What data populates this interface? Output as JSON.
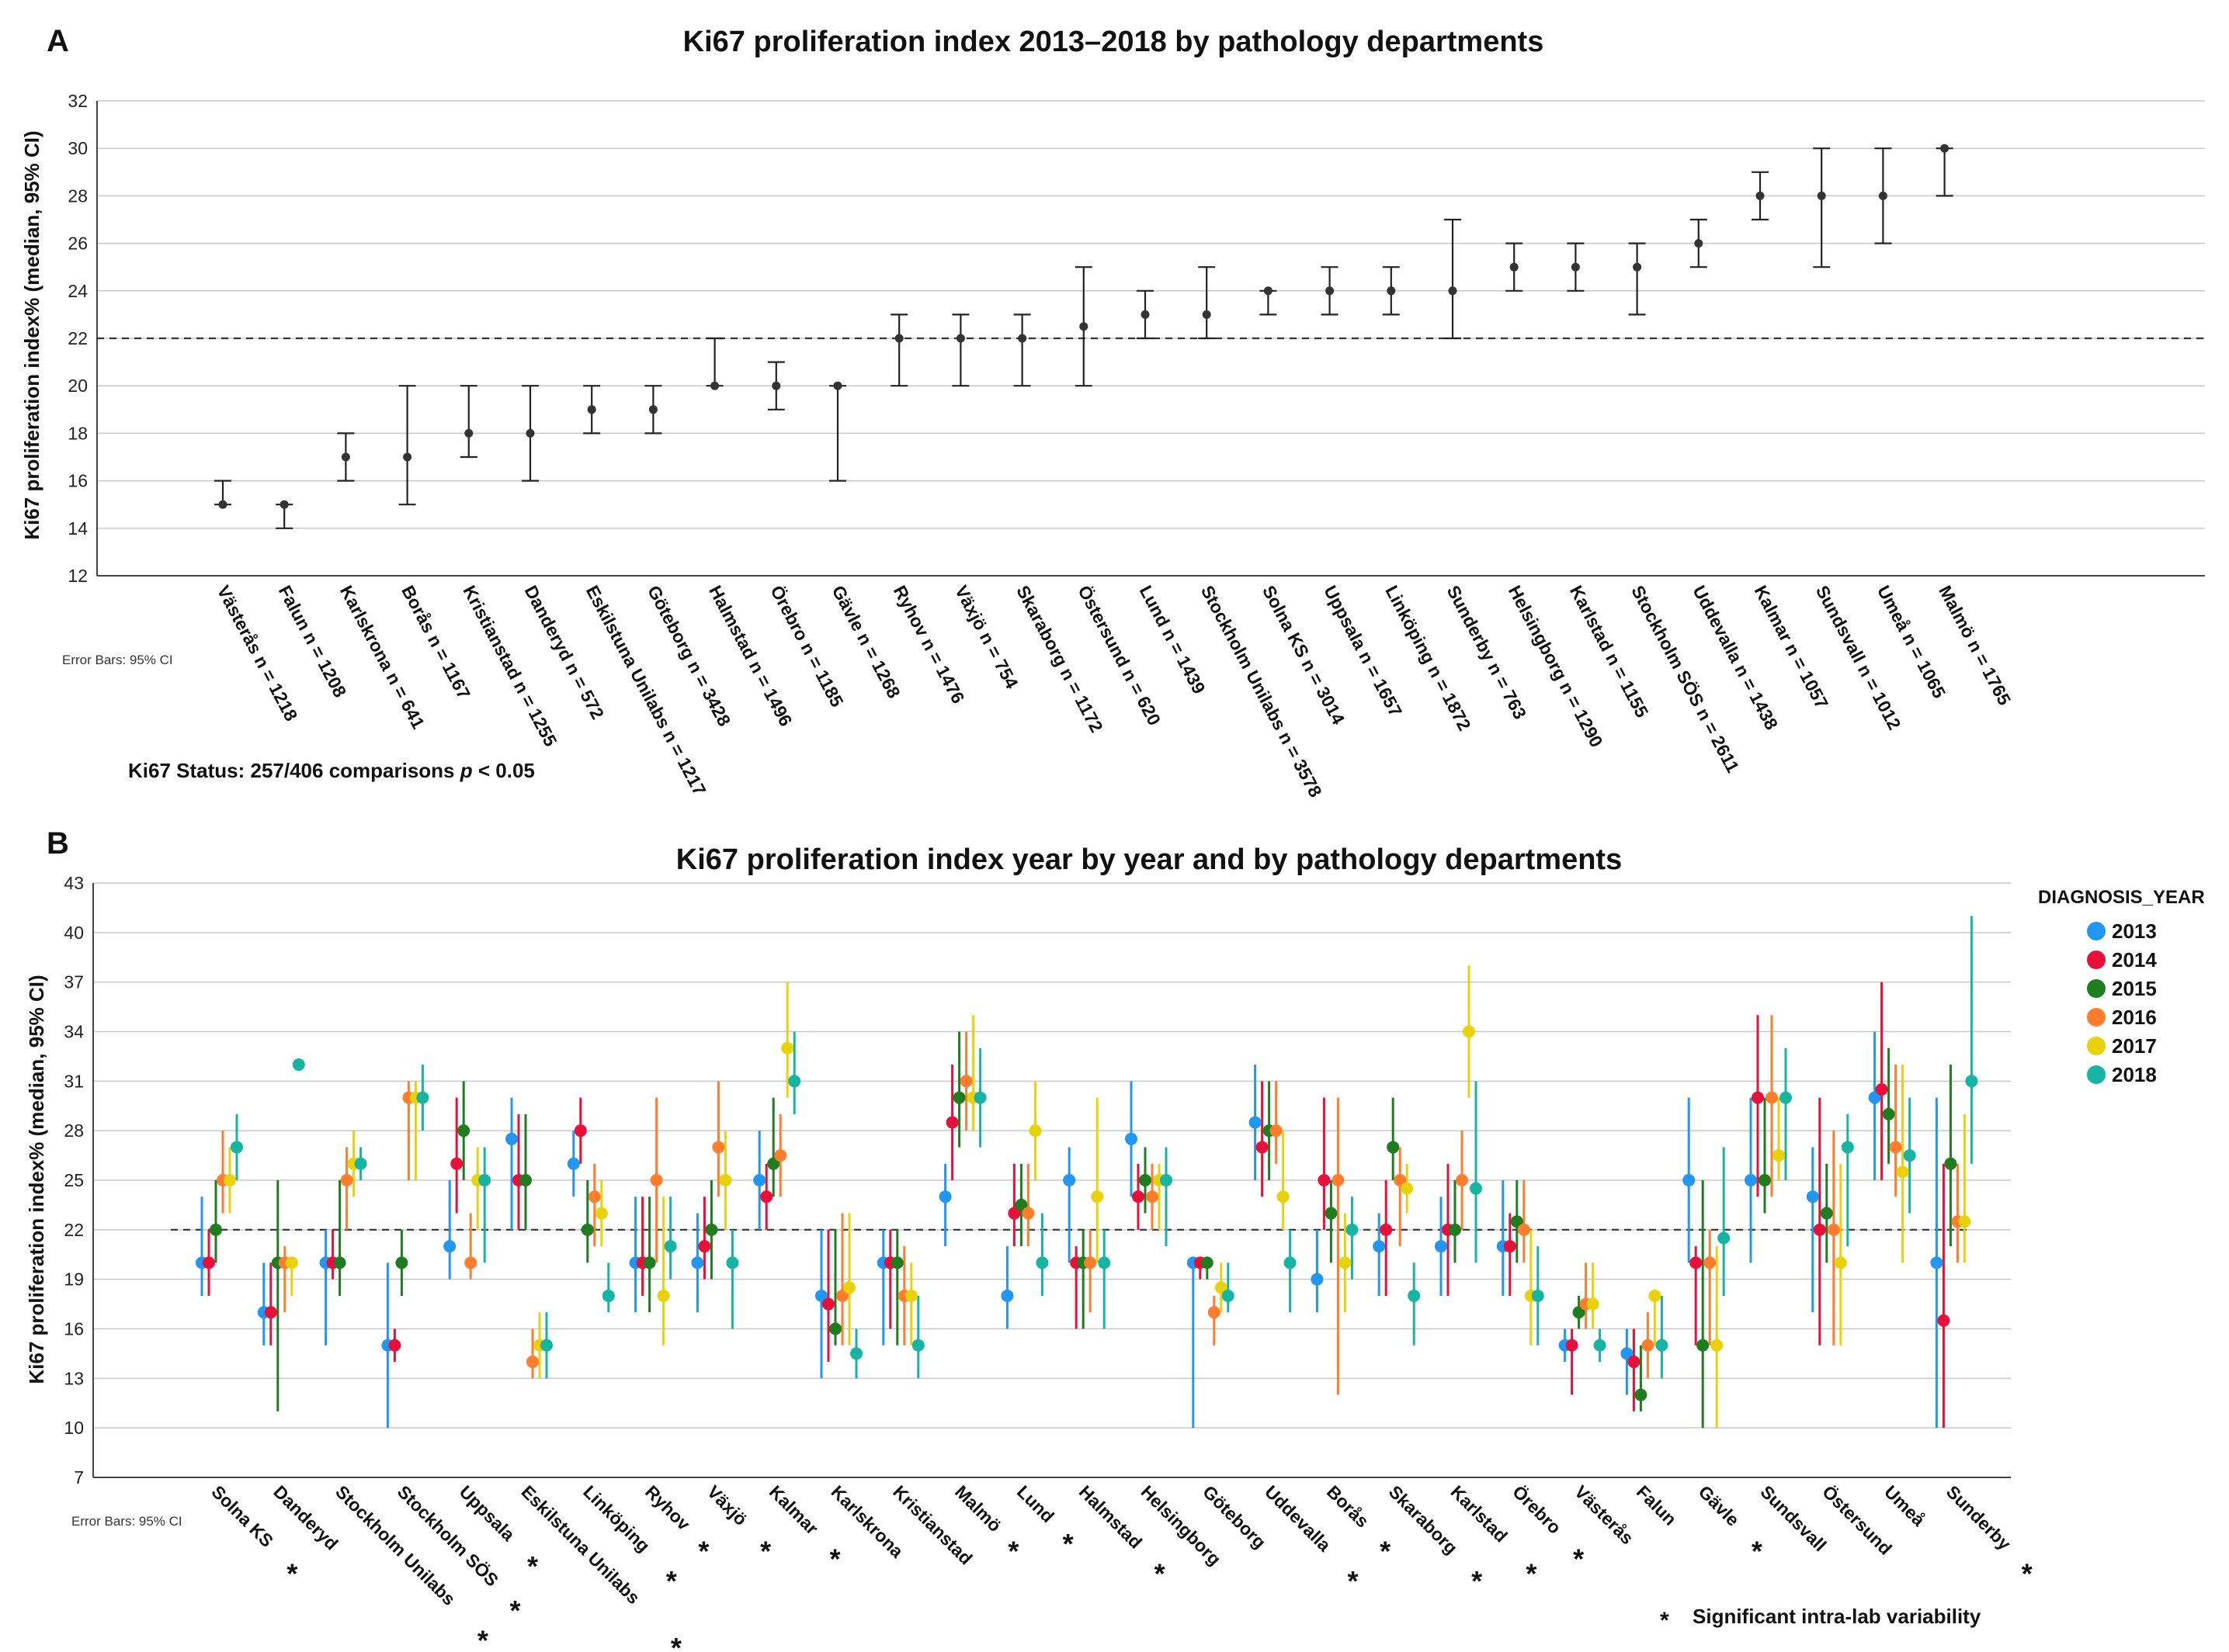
{
  "figure_a": {
    "panel_label": "A",
    "title": "Ki67 proliferation index 2013–2018 by pathology departments",
    "error_bars_note": "Error Bars: 95% CI",
    "status_prefix": "Ki67 Status: 257/406 comparisons ",
    "status_p": "p",
    "status_suffix": " < 0.05"
  },
  "figure_b": {
    "panel_label": "B",
    "title": "Ki67 proliferation index year by year and by pathology departments",
    "error_bars_note": "Error Bars: 95% CI",
    "footnote": "Significant intra-lab variability",
    "footnote_marker": "*"
  },
  "chart_data": [
    {
      "type": "errorbar",
      "title": "Ki67 proliferation index 2013–2018 by pathology departments",
      "xlabel": "",
      "ylabel": "Ki67 proliferation index% (median, 95% CI)",
      "ylim": [
        12,
        32
      ],
      "yticks": [
        12,
        14,
        16,
        18,
        20,
        22,
        24,
        26,
        28,
        30,
        32
      ],
      "grid": true,
      "reference_line": 22,
      "categories": [
        "Västerås n = 1218",
        "Falun n = 1208",
        "Karlskrona n = 641",
        "Borås n = 1167",
        "Kristianstad n = 1255",
        "Danderyd n = 572",
        "Eskilstuna Unilabs  n = 1217",
        "Göteborg n = 3428",
        "Halmstad n = 1496",
        "Örebro n = 1185",
        "Gävle n = 1268",
        "Ryhov n = 1476",
        "Växjö n = 754",
        "Skaraborg n = 1172",
        "Östersund n = 620",
        "Lund n = 1439",
        "Stockholm Unilabs  n = 3578",
        "Solna KS n = 3014",
        "Uppsala n = 1657",
        "Linköping n = 1872",
        "Sunderby n = 763",
        "Helsingborg n = 1290",
        "Karlstad n = 1155",
        "Stockholm SÖS n = 2611",
        "Uddevalla n = 1438",
        "Kalmar n = 1057",
        "Sundsvall n = 1012",
        "Umeå n = 1065",
        "Malmö n = 1765"
      ],
      "median": [
        15,
        15,
        17,
        17,
        18,
        18,
        19,
        19,
        20,
        20,
        20,
        22,
        22,
        22,
        22.5,
        23,
        23,
        24,
        24,
        24,
        24,
        25,
        25,
        25,
        26,
        28,
        28,
        28,
        30
      ],
      "ci_low": [
        15,
        14,
        16,
        15,
        17,
        16,
        18,
        18,
        20,
        19,
        16,
        20,
        20,
        20,
        20,
        22,
        22,
        23,
        23,
        23,
        22,
        24,
        24,
        23,
        25,
        27,
        25,
        26,
        28
      ],
      "ci_high": [
        16,
        15,
        18,
        20,
        20,
        20,
        20,
        20,
        22,
        21,
        20,
        23,
        23,
        23,
        25,
        24,
        25,
        24,
        25,
        25,
        27,
        26,
        26,
        26,
        27,
        29,
        30,
        30,
        30
      ]
    },
    {
      "type": "errorbar",
      "title": "Ki67 proliferation index year by year and by pathology departments",
      "xlabel": "",
      "ylabel": "Ki67 proliferation index% (median, 95% CI)",
      "ylim": [
        7,
        43
      ],
      "yticks": [
        7,
        10,
        13,
        16,
        19,
        22,
        25,
        28,
        31,
        34,
        37,
        40,
        43
      ],
      "grid": true,
      "reference_line": 22,
      "legend_title": "DIAGNOSIS_YEAR",
      "legend_position": "right",
      "categories": [
        "Solna KS",
        "Danderyd",
        "Stockholm Unilabs",
        "Stockholm SÖS",
        "Uppsala",
        "Eskilstuna Unilabs",
        "Linköping",
        "Ryhov",
        "Växjö",
        "Kalmar",
        "Karlskrona",
        "Kristianstad",
        "Malmö",
        "Lund",
        "Halmstad",
        "Helsingborg",
        "Göteborg",
        "Uddevalla",
        "Borås",
        "Skaraborg",
        "Karlstad",
        "Örebro",
        "Västerås",
        "Falun",
        "Gävle",
        "Sundsvall",
        "Östersund",
        "Umeå",
        "Sunderby"
      ],
      "significant": [
        true,
        false,
        true,
        true,
        true,
        true,
        true,
        true,
        true,
        true,
        false,
        false,
        true,
        true,
        true,
        false,
        false,
        true,
        true,
        true,
        true,
        true,
        false,
        false,
        true,
        false,
        false,
        false,
        true
      ],
      "series": [
        {
          "name": "2013",
          "color": "#2196f3",
          "values": [
            20,
            17,
            20,
            15,
            21,
            27.5,
            26,
            20,
            20,
            25,
            18,
            20,
            24,
            18,
            25,
            27.5,
            20,
            28.5,
            19,
            21,
            21,
            21,
            15,
            14.5,
            25,
            25,
            24,
            30,
            20
          ],
          "ci_low": [
            18,
            15,
            15,
            10,
            19,
            22,
            24,
            17,
            17,
            22,
            13,
            15,
            21,
            16,
            20,
            24,
            10,
            25,
            17,
            18,
            18,
            18,
            14,
            12,
            20,
            20,
            17,
            25,
            10
          ],
          "ci_high": [
            24,
            20,
            22,
            20,
            25,
            30,
            28,
            24,
            23,
            28,
            22,
            22,
            26,
            21,
            27,
            31,
            20,
            32,
            22,
            23,
            24,
            25,
            16,
            16,
            30,
            30,
            27,
            34,
            30
          ]
        },
        {
          "name": "2014",
          "color": "#e8103a",
          "values": [
            20,
            17,
            20,
            15,
            26,
            25,
            28,
            20,
            21,
            24,
            17.5,
            20,
            28.5,
            23,
            20,
            24,
            20,
            27,
            25,
            22,
            22,
            21,
            15,
            14,
            20,
            30,
            22,
            30.5,
            16.5
          ],
          "ci_low": [
            18,
            15,
            19,
            14,
            23,
            22,
            26,
            18,
            19,
            22,
            14,
            16,
            25,
            21,
            16,
            22,
            19,
            24,
            22,
            18,
            18,
            18,
            12,
            11,
            15,
            24,
            15,
            25,
            10
          ],
          "ci_high": [
            22,
            20,
            22,
            16,
            30,
            29,
            30,
            24,
            24,
            26,
            22,
            22,
            32,
            26,
            21,
            26,
            20,
            31,
            30,
            25,
            26,
            23,
            16,
            16,
            21,
            35,
            30,
            37,
            26
          ]
        },
        {
          "name": "2015",
          "color": "#1e7d1e",
          "values": [
            22,
            20,
            20,
            20,
            28,
            25,
            22,
            20,
            22,
            26,
            16,
            20,
            30,
            23.5,
            20,
            25,
            20,
            28,
            23,
            27,
            22,
            22.5,
            17,
            12,
            15,
            25,
            23,
            29,
            26
          ],
          "ci_low": [
            20,
            11,
            18,
            18,
            25,
            22,
            20,
            17,
            19,
            24,
            15,
            15,
            27,
            21,
            16,
            23,
            19,
            25,
            20,
            25,
            20,
            20,
            16,
            11,
            10,
            23,
            20,
            26,
            21
          ],
          "ci_high": [
            25,
            25,
            25,
            22,
            31,
            29,
            25,
            24,
            25,
            30,
            22,
            22,
            34,
            26,
            22,
            27,
            20,
            31,
            25,
            30,
            25,
            25,
            18,
            15,
            25,
            30,
            26,
            33,
            32
          ]
        },
        {
          "name": "2016",
          "color": "#ff7d2d",
          "values": [
            25,
            20,
            25,
            30,
            20,
            14,
            24,
            25,
            27,
            26.5,
            18,
            18,
            31,
            23,
            20,
            24,
            17,
            28,
            25,
            25,
            25,
            22,
            17.5,
            15,
            20,
            30,
            22,
            27,
            22.5
          ],
          "ci_low": [
            23,
            17,
            22,
            25,
            19,
            13,
            21,
            20,
            24,
            24,
            15,
            15,
            28,
            21,
            17,
            22,
            15,
            26,
            12,
            21,
            22,
            20,
            16,
            13,
            15,
            24,
            15,
            24,
            20
          ],
          "ci_high": [
            28,
            21,
            27,
            31,
            23,
            16,
            26,
            30,
            31,
            29,
            23,
            21,
            34,
            26,
            22,
            26,
            18,
            31,
            30,
            27,
            28,
            25,
            20,
            17,
            22,
            35,
            28,
            32,
            26
          ]
        },
        {
          "name": "2017",
          "color": "#e8d20c",
          "values": [
            25,
            20,
            26,
            30,
            25,
            15,
            23,
            18,
            25,
            33,
            18.5,
            18,
            30,
            28,
            24,
            25,
            18.5,
            24,
            20,
            24.5,
            34,
            18,
            17.5,
            18,
            15,
            26.5,
            20,
            25.5,
            22.5
          ],
          "ci_low": [
            23,
            18,
            24,
            25,
            22,
            13,
            21,
            15,
            22,
            30,
            15,
            15,
            28,
            25,
            20,
            22,
            17,
            22,
            17,
            23,
            30,
            15,
            16,
            15,
            10,
            25,
            15,
            20,
            20
          ],
          "ci_high": [
            27,
            20,
            28,
            31,
            27,
            17,
            25,
            24,
            28,
            37,
            23,
            20,
            35,
            31,
            30,
            26,
            20,
            28,
            23,
            26,
            38,
            22,
            20,
            18,
            21,
            30,
            26,
            32,
            29
          ]
        },
        {
          "name": "2018",
          "color": "#17b3a3",
          "values": [
            27,
            32,
            26,
            30,
            25,
            15,
            18,
            21,
            20,
            31,
            14.5,
            15,
            30,
            20,
            20,
            25,
            18,
            20,
            22,
            18,
            24.5,
            18,
            15,
            15,
            21.5,
            30,
            27,
            26.5,
            31
          ],
          "ci_low": [
            25,
            32,
            25,
            28,
            20,
            13,
            17,
            19,
            16,
            29,
            13,
            13,
            27,
            18,
            16,
            21,
            17,
            17,
            19,
            15,
            20,
            15,
            14,
            13,
            18,
            25,
            21,
            23,
            26
          ],
          "ci_high": [
            29,
            32,
            27,
            32,
            27,
            17,
            20,
            24,
            22,
            34,
            16,
            18,
            33,
            23,
            22,
            27,
            20,
            22,
            24,
            20,
            31,
            21,
            16,
            18,
            27,
            33,
            29,
            30,
            41
          ]
        }
      ]
    }
  ]
}
